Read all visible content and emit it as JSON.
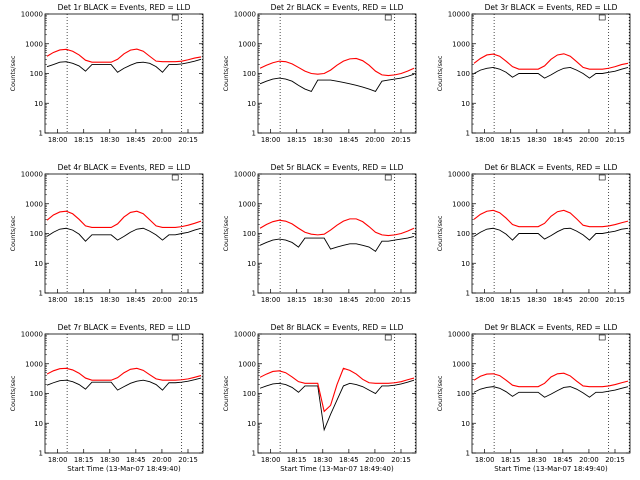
{
  "chart_data": [
    {
      "type": "line",
      "title": "Det 1r BLACK = Events, RED = LLD",
      "xlabel": "",
      "ylabel": "Counts/sec",
      "yscale": "log",
      "ylim": [
        1,
        10000
      ],
      "xticks": [
        "18:00",
        "18:15",
        "18:30",
        "18:45",
        "20:00",
        "20:15"
      ],
      "y_tick_labels": [
        "1",
        "10",
        "100",
        "1000",
        "10000"
      ],
      "series": [
        {
          "color": "#ff0000",
          "values": [
            380,
            510,
            620,
            650,
            560,
            420,
            280,
            240,
            240,
            240,
            240,
            300,
            460,
            610,
            660,
            560,
            380,
            260,
            250,
            250,
            250,
            260,
            290,
            330,
            360
          ]
        },
        {
          "color": "#000000",
          "values": [
            170,
            200,
            240,
            250,
            220,
            180,
            120,
            200,
            200,
            200,
            200,
            110,
            150,
            190,
            230,
            240,
            220,
            170,
            110,
            200,
            200,
            210,
            230,
            260,
            300
          ]
        }
      ]
    },
    {
      "type": "line",
      "title": "Det 2r BLACK = Events, RED = LLD",
      "xlabel": "",
      "ylabel": "Counts/sec",
      "yscale": "log",
      "ylim": [
        1,
        10000
      ],
      "xticks": [
        "18:00",
        "18:15",
        "18:30",
        "18:45",
        "20:00",
        "20:15"
      ],
      "y_tick_labels": [
        "1",
        "10",
        "100",
        "1000",
        "10000"
      ],
      "series": [
        {
          "color": "#ff0000",
          "values": [
            150,
            190,
            230,
            260,
            250,
            210,
            160,
            120,
            100,
            95,
            100,
            130,
            190,
            260,
            310,
            320,
            270,
            190,
            120,
            90,
            85,
            90,
            100,
            120,
            150
          ]
        },
        {
          "color": "#000000",
          "values": [
            45,
            55,
            65,
            70,
            65,
            55,
            40,
            30,
            25,
            60,
            60,
            60,
            55,
            50,
            45,
            40,
            35,
            30,
            25,
            55,
            60,
            65,
            70,
            80,
            95
          ]
        }
      ]
    },
    {
      "type": "line",
      "title": "Det 3r BLACK = Events, RED = LLD",
      "xlabel": "",
      "ylabel": "Counts/sec",
      "yscale": "log",
      "ylim": [
        1,
        10000
      ],
      "xticks": [
        "18:00",
        "18:15",
        "18:30",
        "18:45",
        "20:00",
        "20:15"
      ],
      "y_tick_labels": [
        "1",
        "10",
        "100",
        "1000",
        "10000"
      ],
      "series": [
        {
          "color": "#ff0000",
          "values": [
            220,
            320,
            420,
            450,
            380,
            260,
            170,
            140,
            140,
            140,
            140,
            180,
            300,
            420,
            460,
            380,
            250,
            160,
            140,
            140,
            140,
            150,
            170,
            200,
            220
          ]
        },
        {
          "color": "#000000",
          "values": [
            100,
            130,
            150,
            160,
            140,
            110,
            75,
            100,
            100,
            100,
            100,
            70,
            90,
            120,
            150,
            160,
            130,
            100,
            70,
            100,
            100,
            110,
            120,
            140,
            160
          ]
        }
      ]
    },
    {
      "type": "line",
      "title": "Det 4r BLACK = Events, RED = LLD",
      "xlabel": "",
      "ylabel": "Counts/sec",
      "yscale": "log",
      "ylim": [
        1,
        10000
      ],
      "xticks": [
        "18:00",
        "18:15",
        "18:30",
        "18:45",
        "20:00",
        "20:15"
      ],
      "y_tick_labels": [
        "1",
        "10",
        "100",
        "1000",
        "10000"
      ],
      "series": [
        {
          "color": "#ff0000",
          "values": [
            280,
            420,
            530,
            560,
            460,
            300,
            180,
            160,
            160,
            160,
            160,
            210,
            360,
            510,
            560,
            460,
            290,
            180,
            160,
            160,
            160,
            170,
            190,
            220,
            260
          ]
        },
        {
          "color": "#000000",
          "values": [
            80,
            110,
            140,
            150,
            130,
            95,
            55,
            90,
            90,
            90,
            90,
            60,
            80,
            110,
            140,
            150,
            120,
            90,
            60,
            90,
            90,
            100,
            110,
            130,
            150
          ]
        }
      ]
    },
    {
      "type": "line",
      "title": "Det 5r BLACK = Events, RED = LLD",
      "xlabel": "",
      "ylabel": "Counts/sec",
      "yscale": "log",
      "ylim": [
        1,
        10000
      ],
      "xticks": [
        "18:00",
        "18:15",
        "18:30",
        "18:45",
        "20:00",
        "20:15"
      ],
      "y_tick_labels": [
        "1",
        "10",
        "100",
        "1000",
        "10000"
      ],
      "series": [
        {
          "color": "#ff0000",
          "values": [
            150,
            200,
            250,
            280,
            260,
            210,
            150,
            110,
            95,
            90,
            95,
            130,
            190,
            260,
            310,
            310,
            250,
            170,
            110,
            90,
            85,
            90,
            100,
            120,
            150
          ]
        },
        {
          "color": "#000000",
          "values": [
            40,
            50,
            60,
            65,
            60,
            50,
            35,
            70,
            70,
            70,
            70,
            30,
            35,
            40,
            45,
            45,
            40,
            35,
            25,
            55,
            55,
            60,
            65,
            70,
            80
          ]
        }
      ]
    },
    {
      "type": "line",
      "title": "Det 6r BLACK = Events, RED = LLD",
      "xlabel": "",
      "ylabel": "Counts/sec",
      "yscale": "log",
      "ylim": [
        1,
        10000
      ],
      "xticks": [
        "18:00",
        "18:15",
        "18:30",
        "18:45",
        "20:00",
        "20:15"
      ],
      "y_tick_labels": [
        "1",
        "10",
        "100",
        "1000",
        "10000"
      ],
      "series": [
        {
          "color": "#ff0000",
          "values": [
            300,
            440,
            560,
            600,
            500,
            330,
            200,
            170,
            170,
            170,
            170,
            220,
            380,
            540,
            600,
            490,
            310,
            190,
            170,
            170,
            170,
            180,
            200,
            230,
            260
          ]
        },
        {
          "color": "#000000",
          "values": [
            80,
            110,
            140,
            150,
            130,
            95,
            60,
            100,
            100,
            100,
            100,
            65,
            85,
            115,
            145,
            150,
            120,
            90,
            60,
            100,
            100,
            110,
            120,
            140,
            150
          ]
        }
      ]
    },
    {
      "type": "line",
      "title": "Det 7r BLACK = Events, RED = LLD",
      "xlabel": "Start Time (13-Mar-07 18:49:40)",
      "ylabel": "Counts/sec",
      "yscale": "log",
      "ylim": [
        1,
        10000
      ],
      "xticks": [
        "18:00",
        "18:15",
        "18:30",
        "18:45",
        "20:00",
        "20:15"
      ],
      "y_tick_labels": [
        "1",
        "10",
        "100",
        "1000",
        "10000"
      ],
      "series": [
        {
          "color": "#ff0000",
          "values": [
            450,
            580,
            680,
            700,
            620,
            480,
            330,
            280,
            280,
            280,
            280,
            340,
            500,
            650,
            700,
            600,
            430,
            310,
            280,
            280,
            280,
            290,
            310,
            350,
            400
          ]
        },
        {
          "color": "#000000",
          "values": [
            190,
            230,
            270,
            280,
            250,
            200,
            140,
            240,
            240,
            240,
            240,
            130,
            170,
            220,
            260,
            280,
            250,
            200,
            130,
            230,
            230,
            240,
            260,
            290,
            330
          ]
        }
      ]
    },
    {
      "type": "line",
      "title": "Det 8r BLACK = Events, RED = LLD",
      "xlabel": "Start Time (13-Mar-07 18:49:40)",
      "ylabel": "Counts/sec",
      "yscale": "log",
      "ylim": [
        1,
        10000
      ],
      "xticks": [
        "18:00",
        "18:15",
        "18:30",
        "18:45",
        "20:00",
        "20:15"
      ],
      "y_tick_labels": [
        "1",
        "10",
        "100",
        "1000",
        "10000"
      ],
      "series": [
        {
          "color": "#ff0000",
          "values": [
            350,
            450,
            550,
            580,
            500,
            360,
            250,
            220,
            220,
            220,
            25,
            40,
            200,
            700,
            600,
            450,
            300,
            230,
            220,
            220,
            220,
            230,
            250,
            290,
            330
          ]
        },
        {
          "color": "#000000",
          "values": [
            150,
            180,
            210,
            220,
            200,
            160,
            110,
            180,
            180,
            180,
            6,
            20,
            60,
            180,
            220,
            200,
            170,
            130,
            100,
            180,
            180,
            190,
            210,
            240,
            280
          ]
        }
      ]
    },
    {
      "type": "line",
      "title": "Det 9r BLACK = Events, RED = LLD",
      "xlabel": "Start Time (13-Mar-07 18:49:40)",
      "ylabel": "Counts/sec",
      "yscale": "log",
      "ylim": [
        1,
        10000
      ],
      "xticks": [
        "18:00",
        "18:15",
        "18:30",
        "18:45",
        "20:00",
        "20:15"
      ],
      "y_tick_labels": [
        "1",
        "10",
        "100",
        "1000",
        "10000"
      ],
      "series": [
        {
          "color": "#ff0000",
          "values": [
            280,
            380,
            450,
            460,
            400,
            280,
            190,
            170,
            170,
            170,
            170,
            220,
            360,
            460,
            480,
            390,
            260,
            180,
            170,
            170,
            170,
            180,
            200,
            230,
            260
          ]
        },
        {
          "color": "#000000",
          "values": [
            110,
            140,
            160,
            170,
            150,
            115,
            80,
            110,
            110,
            110,
            110,
            75,
            95,
            125,
            160,
            170,
            140,
            105,
            75,
            110,
            110,
            120,
            130,
            150,
            170
          ]
        }
      ]
    }
  ]
}
